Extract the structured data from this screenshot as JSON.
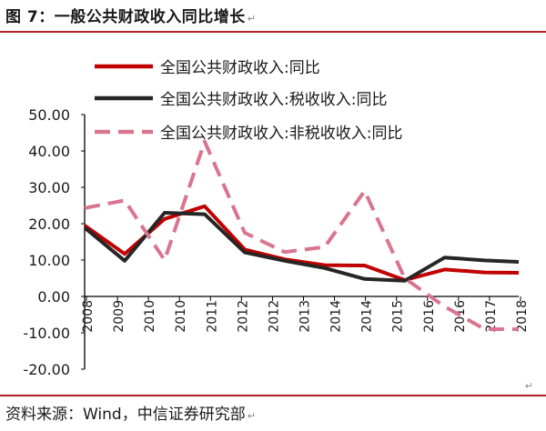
{
  "caption": {
    "text": "图 7：一般公共财政收入同比增长",
    "mark": "↵"
  },
  "source": {
    "text": "资料来源：Wind，中信证券研究部",
    "mark": "↵"
  },
  "trail_mark": "↵",
  "colors": {
    "brand_rule": "#b21f24",
    "total": "#c00000",
    "tax": "#262626",
    "nontax": "#d9758f"
  },
  "chart_data": {
    "type": "line",
    "title": "",
    "xlabel": "",
    "ylabel": "",
    "ylim": [
      -20,
      50
    ],
    "yticks": [
      "50.00",
      "40.00",
      "30.00",
      "20.00",
      "10.00",
      "0.00",
      "-10.00",
      "-20.00"
    ],
    "ytick_values": [
      50,
      40,
      30,
      20,
      10,
      0,
      -10,
      -20
    ],
    "xticks": [
      "2008",
      "2009",
      "2010",
      "2010",
      "2011",
      "2012",
      "2012",
      "2013",
      "2014",
      "2014",
      "2015",
      "2016",
      "2016",
      "2017",
      "2018"
    ],
    "legend_position": "top",
    "grid": false,
    "series": [
      {
        "name": "全国公共财政收入:同比",
        "color": "#c00000",
        "dash": "solid",
        "x": [
          2008.0,
          2009.0,
          2010.0,
          2011.0,
          2012.0,
          2013.0,
          2014.0,
          2015.0,
          2016.0,
          2017.0,
          2018.0,
          2018.85
        ],
        "y": [
          19.5,
          11.7,
          21.3,
          24.8,
          12.9,
          10.2,
          8.6,
          8.5,
          4.5,
          7.4,
          6.6,
          6.5
        ]
      },
      {
        "name": "全国公共财政收入:税收收入:同比",
        "color": "#262626",
        "dash": "solid",
        "x": [
          2008.0,
          2009.0,
          2010.0,
          2011.0,
          2012.0,
          2013.0,
          2014.0,
          2015.0,
          2016.0,
          2017.0,
          2018.0,
          2018.85
        ],
        "y": [
          18.9,
          9.8,
          23.0,
          22.6,
          12.1,
          9.8,
          7.8,
          4.8,
          4.3,
          10.7,
          9.9,
          9.5
        ]
      },
      {
        "name": "全国公共财政收入:非税收收入:同比",
        "color": "#d9758f",
        "dash": "dashed",
        "x": [
          2008.0,
          2009.0,
          2010.0,
          2011.0,
          2012.0,
          2013.0,
          2014.0,
          2015.0,
          2016.0,
          2017.0,
          2018.0,
          2018.85
        ],
        "y": [
          24.3,
          26.4,
          10.0,
          42.6,
          17.5,
          12.2,
          13.6,
          29.0,
          5.0,
          -2.8,
          -9.0,
          -9.0
        ]
      }
    ]
  }
}
